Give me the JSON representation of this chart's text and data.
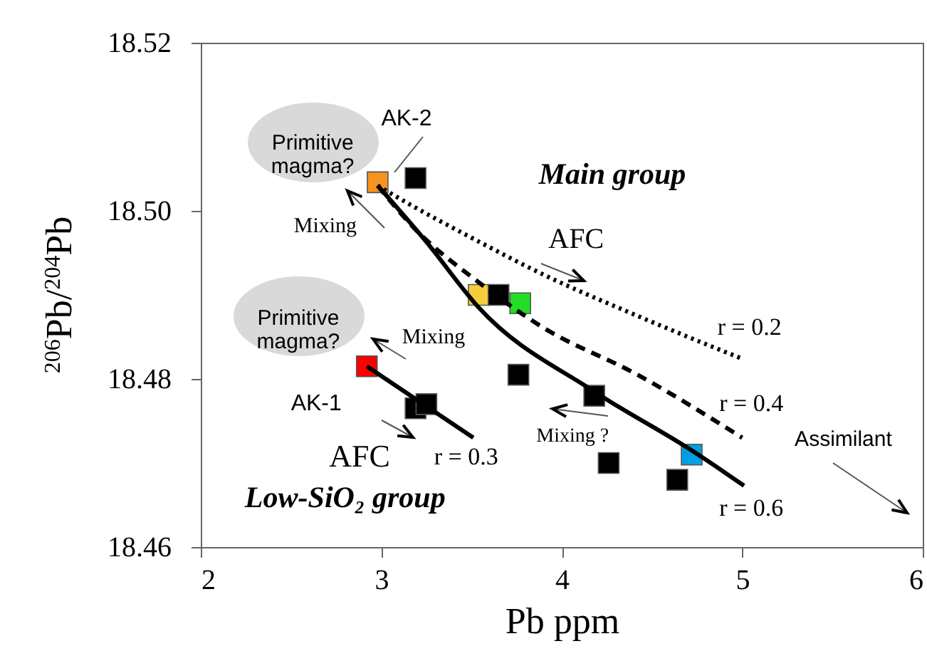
{
  "chart_data": {
    "type": "scatter",
    "xlabel": "Pb ppm",
    "ylabel": "$^{206}$Pb/$^{204}$Pb",
    "xlim": [
      2,
      6
    ],
    "xticks": [
      2,
      3,
      4,
      5,
      6
    ],
    "ylim": [
      18.46,
      18.52
    ],
    "yticks": [
      {
        "value": 18.46,
        "label": "18.46"
      },
      {
        "value": 18.48,
        "label": "18.48"
      },
      {
        "value": 18.5,
        "label": "18.50"
      },
      {
        "value": 18.52,
        "label": "18.52"
      }
    ],
    "grid": false,
    "series": [
      {
        "marker": "square",
        "x": [
          2.98,
          3.19,
          3.54,
          3.65,
          3.77,
          2.92,
          3.19,
          3.25,
          3.76,
          4.18,
          4.26,
          4.72,
          4.64
        ],
        "values": [
          18.5034,
          18.5039,
          18.49,
          18.49,
          18.489,
          18.4815,
          18.4765,
          18.477,
          18.4805,
          18.478,
          18.47,
          18.471,
          18.468
        ],
        "colors": [
          "#f7931e",
          "#000000",
          "#f5cd3a",
          "#000000",
          "#22dd22",
          "#ff0000",
          "#000000",
          "#000000",
          "#000000",
          "#000000",
          "#000000",
          "#00a0e0",
          "#000000"
        ],
        "errors": [
          0.0007,
          0.0007,
          0.0007,
          0.0007,
          0.0007,
          0.0007,
          0.0007,
          0.0007,
          0.0007,
          0.0007,
          0.0007,
          0.0007,
          0.0007
        ],
        "xerrors": [
          0.05,
          0.05,
          0.05,
          0.05,
          0.05,
          0.05,
          0.05,
          0.05,
          0.05,
          0.05,
          0.05,
          0.05,
          0.05
        ]
      },
      {
        "type": "line",
        "color": "#000000",
        "line_style": "dotted",
        "x": [
          2.98,
          3.18,
          3.5,
          3.89,
          4.42,
          5.0
        ],
        "values": [
          18.503,
          18.5005,
          18.4968,
          18.4925,
          18.4875,
          18.4824
        ]
      },
      {
        "type": "line",
        "color": "#000000",
        "line_style": "dashed",
        "x": [
          2.98,
          3.18,
          3.54,
          3.89,
          4.42,
          5.0
        ],
        "values": [
          18.503,
          18.498,
          18.4915,
          18.4862,
          18.4805,
          18.473
        ]
      },
      {
        "type": "line",
        "color": "#000000",
        "line_style": "solid",
        "x": [
          2.98,
          3.25,
          3.54,
          4.18,
          4.72,
          5.01
        ],
        "values": [
          18.503,
          18.4963,
          18.4885,
          18.4785,
          18.4715,
          18.4673
        ]
      },
      {
        "type": "line",
        "color": "#000000",
        "line_style": "solid",
        "x": [
          2.92,
          3.51
        ],
        "values": [
          18.4815,
          18.473
        ]
      }
    ],
    "annotations": [
      "Primitive\nmagma?",
      "Primitive\nmagma?",
      "AK-2",
      "AK-1",
      "Main group",
      "AFC",
      "Mixing",
      "Mixing",
      "Mixing ?",
      "AFC",
      "r = 0.3",
      "r = 0.2",
      "r = 0.4",
      "r = 0.6",
      "Assimilant",
      "Low-SiO₂ group"
    ]
  }
}
